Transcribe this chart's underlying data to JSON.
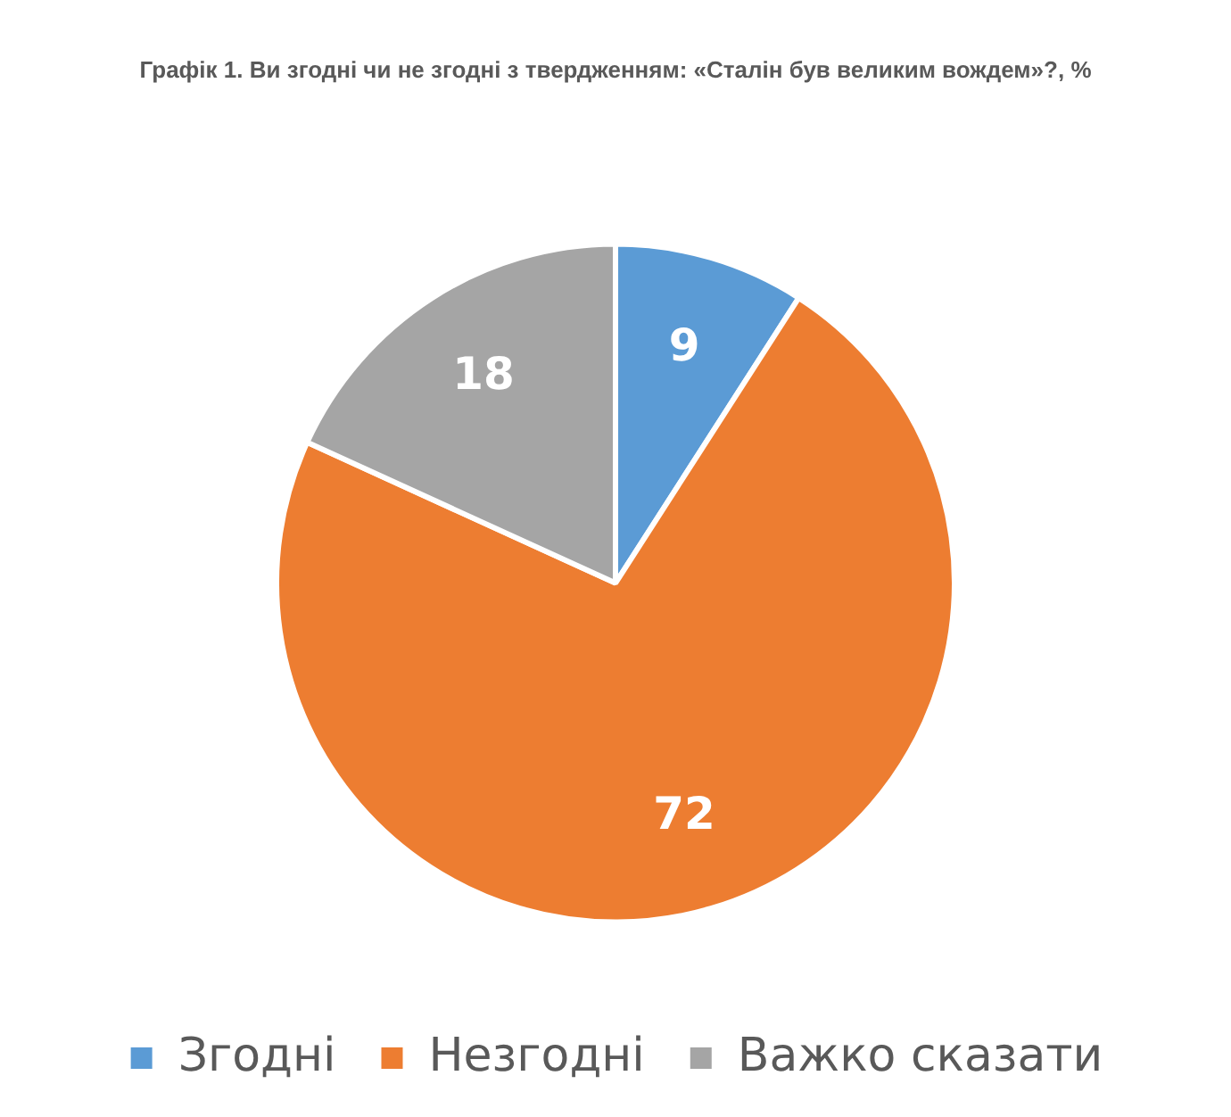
{
  "chart_data": {
    "type": "pie",
    "title": "Графік 1. Ви згодні чи не згодні з твердженням: «Сталін був великим вождем»?, %",
    "categories": [
      "Згодні",
      "Незгодні",
      "Важко сказати"
    ],
    "values": [
      9,
      72,
      18
    ],
    "colors": [
      "#5b9bd5",
      "#ed7d31",
      "#a5a5a5"
    ],
    "data_labels": true,
    "legend": "bottom"
  }
}
